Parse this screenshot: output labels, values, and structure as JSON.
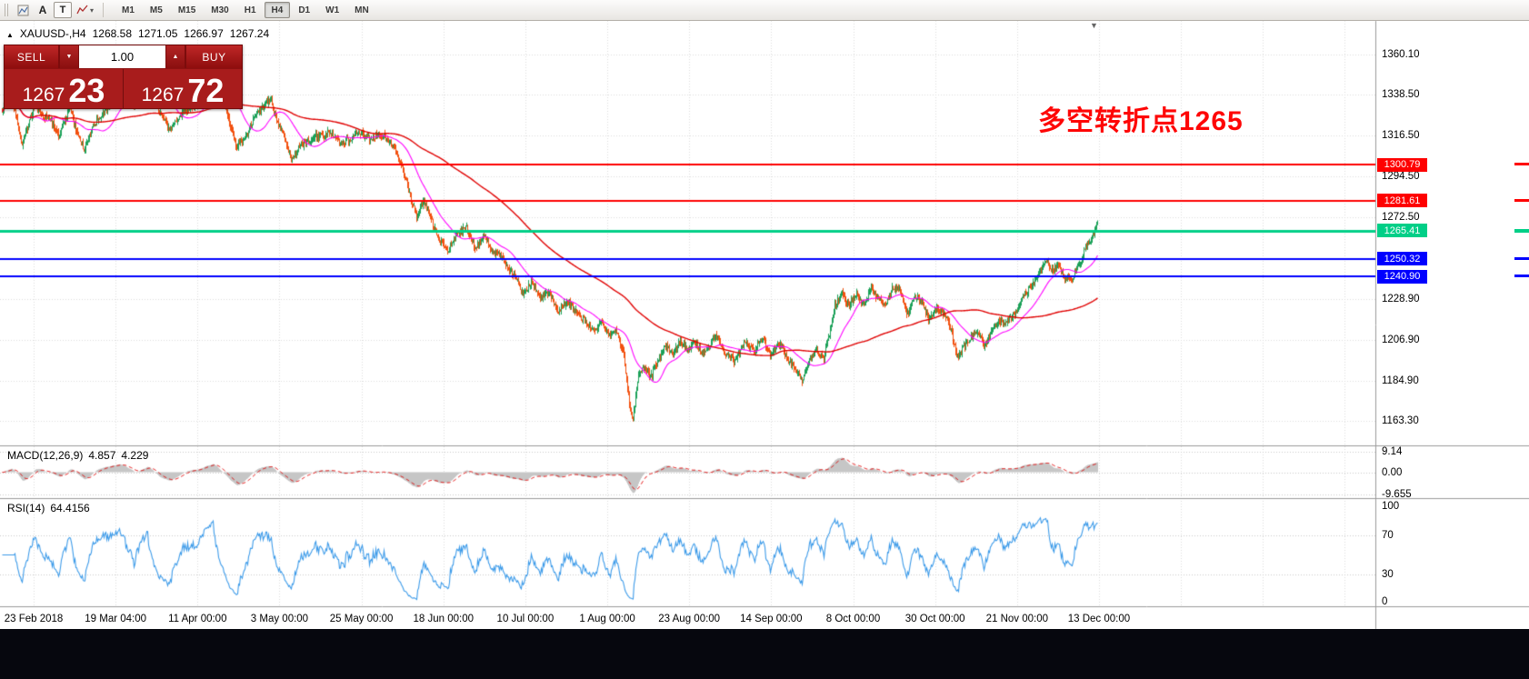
{
  "toolbar": {
    "buttons": {
      "a": "A",
      "t": "T"
    },
    "timeframes": [
      "M1",
      "M5",
      "M15",
      "M30",
      "H1",
      "H4",
      "D1",
      "W1",
      "MN"
    ],
    "active_timeframe": "H4"
  },
  "icons": {
    "title_marker": "▲",
    "caret_down": "▼",
    "caret_up": "▲",
    "caret_down_small": "▾",
    "shift_marker": "▼"
  },
  "chart": {
    "title": {
      "symbol_period": "XAUUSD-,H4",
      "open": "1268.58",
      "high": "1271.05",
      "low": "1266.97",
      "close": "1267.24"
    },
    "trade_panel": {
      "sell_label": "SELL",
      "buy_label": "BUY",
      "volume": "1.00",
      "sell_price_main": "1267",
      "sell_price_pips": "23",
      "buy_price_main": "1267",
      "buy_price_pips": "72"
    },
    "annotation": {
      "text": "多空转折点1265",
      "color": "#fe0606"
    },
    "levels": [
      {
        "price": "1300.79",
        "value": 1300.79,
        "color": "#fe0000",
        "width": 2
      },
      {
        "price": "1281.61",
        "value": 1281.61,
        "color": "#fe0000",
        "width": 2
      },
      {
        "price": "1265.41",
        "value": 1265.41,
        "color": "#00cf87",
        "width": 3
      },
      {
        "price": "1250.32",
        "value": 1250.32,
        "color": "#0000ff",
        "width": 2
      },
      {
        "price": "1240.90",
        "value": 1240.9,
        "color": "#0000ff",
        "width": 2
      }
    ],
    "y_axis_ticks": [
      "1360.10",
      "1338.50",
      "1316.50",
      "1294.50",
      "1272.50",
      "1228.90",
      "1206.90",
      "1184.90",
      "1163.30"
    ],
    "x_axis_ticks": [
      "23 Feb 2018",
      "19 Mar 04:00",
      "11 Apr 00:00",
      "3 May 00:00",
      "25 May 00:00",
      "18 Jun 00:00",
      "10 Jul 00:00",
      "1 Aug 00:00",
      "23 Aug 00:00",
      "14 Sep 00:00",
      "8 Oct 00:00",
      "30 Oct 00:00",
      "21 Nov 00:00",
      "13 Dec 00:00"
    ]
  },
  "macd": {
    "name": "MACD(12,26,9)",
    "value_main": "4.857",
    "value_signal": "4.229",
    "axis": [
      "9.14",
      "0.00",
      "-9.655"
    ]
  },
  "rsi": {
    "name": "RSI(14)",
    "value": "64.4156",
    "axis": [
      "100",
      "70",
      "30",
      "0"
    ]
  },
  "chart_data": {
    "type": "candlestick",
    "symbol": "XAUUSD-",
    "timeframe": "H4",
    "visible_date_range": [
      "23 Feb 2018",
      "13 Dec 2018"
    ],
    "y_axis_range": [
      1150,
      1378
    ],
    "horizontal_levels": [
      1300.79,
      1281.61,
      1265.41,
      1250.32,
      1240.9
    ],
    "indicators": [
      {
        "name": "MACD",
        "params": "12,26,9",
        "values": [
          "4.857",
          "4.229"
        ]
      },
      {
        "name": "RSI",
        "params": "14",
        "value": "64.4156"
      },
      {
        "name": "MA-fast",
        "color": "#ff00ff"
      },
      {
        "name": "MA-slow",
        "color": "#e00000"
      }
    ],
    "colors": {
      "up": "#1ba158",
      "down": "#f2500f",
      "ma_fast": "#ff00ff",
      "ma_slow": "#e00000",
      "macd_hist": "#c6c6c6",
      "macd_signal": "#e00000",
      "rsi": "#3d9be9"
    },
    "price_path": [
      [
        0,
        1330
      ],
      [
        10,
        1338
      ],
      [
        22,
        1312
      ],
      [
        35,
        1332
      ],
      [
        50,
        1326
      ],
      [
        62,
        1318
      ],
      [
        75,
        1330
      ],
      [
        90,
        1308
      ],
      [
        100,
        1322
      ],
      [
        115,
        1331
      ],
      [
        130,
        1342
      ],
      [
        145,
        1334
      ],
      [
        160,
        1348
      ],
      [
        172,
        1330
      ],
      [
        185,
        1320
      ],
      [
        200,
        1330
      ],
      [
        215,
        1334
      ],
      [
        232,
        1350
      ],
      [
        245,
        1332
      ],
      [
        258,
        1310
      ],
      [
        270,
        1318
      ],
      [
        282,
        1330
      ],
      [
        295,
        1336
      ],
      [
        308,
        1318
      ],
      [
        318,
        1304
      ],
      [
        330,
        1312
      ],
      [
        345,
        1316
      ],
      [
        360,
        1318
      ],
      [
        375,
        1312
      ],
      [
        390,
        1318
      ],
      [
        405,
        1315
      ],
      [
        420,
        1317
      ],
      [
        432,
        1308
      ],
      [
        440,
        1300
      ],
      [
        448,
        1285
      ],
      [
        456,
        1274
      ],
      [
        464,
        1281
      ],
      [
        472,
        1272
      ],
      [
        480,
        1261
      ],
      [
        490,
        1255
      ],
      [
        500,
        1263
      ],
      [
        510,
        1268
      ],
      [
        520,
        1257
      ],
      [
        530,
        1262
      ],
      [
        540,
        1254
      ],
      [
        550,
        1251
      ],
      [
        558,
        1245
      ],
      [
        566,
        1239
      ],
      [
        574,
        1231
      ],
      [
        582,
        1238
      ],
      [
        592,
        1229
      ],
      [
        602,
        1233
      ],
      [
        612,
        1222
      ],
      [
        622,
        1228
      ],
      [
        632,
        1221
      ],
      [
        642,
        1217
      ],
      [
        652,
        1211
      ],
      [
        660,
        1217
      ],
      [
        668,
        1209
      ],
      [
        676,
        1212
      ],
      [
        684,
        1198
      ],
      [
        690,
        1172
      ],
      [
        694,
        1164
      ],
      [
        700,
        1188
      ],
      [
        707,
        1193
      ],
      [
        714,
        1187
      ],
      [
        722,
        1196
      ],
      [
        730,
        1204
      ],
      [
        738,
        1199
      ],
      [
        746,
        1207
      ],
      [
        754,
        1201
      ],
      [
        762,
        1206
      ],
      [
        770,
        1199
      ],
      [
        778,
        1204
      ],
      [
        786,
        1209
      ],
      [
        796,
        1199
      ],
      [
        806,
        1195
      ],
      [
        816,
        1205
      ],
      [
        826,
        1201
      ],
      [
        836,
        1207
      ],
      [
        846,
        1199
      ],
      [
        856,
        1205
      ],
      [
        864,
        1197
      ],
      [
        872,
        1191
      ],
      [
        880,
        1185
      ],
      [
        888,
        1196
      ],
      [
        896,
        1201
      ],
      [
        904,
        1197
      ],
      [
        910,
        1210
      ],
      [
        916,
        1226
      ],
      [
        924,
        1231
      ],
      [
        932,
        1226
      ],
      [
        940,
        1231
      ],
      [
        948,
        1227
      ],
      [
        956,
        1234
      ],
      [
        964,
        1229
      ],
      [
        972,
        1226
      ],
      [
        980,
        1236
      ],
      [
        988,
        1232
      ],
      [
        996,
        1221
      ],
      [
        1004,
        1230
      ],
      [
        1012,
        1227
      ],
      [
        1020,
        1217
      ],
      [
        1028,
        1225
      ],
      [
        1036,
        1220
      ],
      [
        1044,
        1212
      ],
      [
        1052,
        1197
      ],
      [
        1058,
        1203
      ],
      [
        1064,
        1208
      ],
      [
        1072,
        1211
      ],
      [
        1080,
        1204
      ],
      [
        1088,
        1211
      ],
      [
        1096,
        1217
      ],
      [
        1104,
        1215
      ],
      [
        1112,
        1220
      ],
      [
        1120,
        1227
      ],
      [
        1128,
        1233
      ],
      [
        1136,
        1239
      ],
      [
        1144,
        1246
      ],
      [
        1150,
        1250
      ],
      [
        1156,
        1243
      ],
      [
        1162,
        1247
      ],
      [
        1168,
        1241
      ],
      [
        1176,
        1237
      ],
      [
        1184,
        1247
      ],
      [
        1192,
        1256
      ],
      [
        1200,
        1264
      ],
      [
        1205,
        1269
      ]
    ]
  }
}
